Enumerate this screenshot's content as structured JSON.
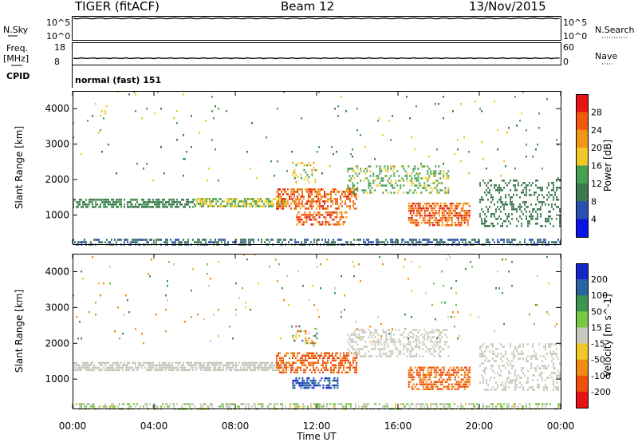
{
  "header": {
    "radar": "TIGER (fitACF)",
    "beam": "Beam 12",
    "date": "13/Nov/2015"
  },
  "top_panels": {
    "nsky_label": "N.Sky",
    "nsky_ticks": [
      "10^5",
      "10^0"
    ],
    "nsearch_label": "N.Search",
    "nsearch_ticks": [
      "10^5",
      "10^0"
    ],
    "freq_label_1": "Freq.",
    "freq_label_2": "[MHz]",
    "freq_ticks": [
      "18",
      "8"
    ],
    "nave_label": "Nave",
    "nave_ticks": [
      "60",
      "0"
    ],
    "cpid_label": "CPID",
    "cpid_value": "normal (fast) 151"
  },
  "x_axis": {
    "label": "Time UT",
    "ticks": [
      "00:00",
      "04:00",
      "08:00",
      "12:00",
      "16:00",
      "20:00",
      "00:00"
    ]
  },
  "chart_data": [
    {
      "type": "heatmap",
      "title": "",
      "xlabel": "Time UT",
      "ylabel": "Slant Range [km]",
      "x_range_hours": [
        0,
        24
      ],
      "ylim": [
        180,
        4500
      ],
      "y_ticks": [
        1000,
        2000,
        3000,
        4000
      ],
      "colorbar": {
        "label": "Power [dB]",
        "ticks": [
          "4",
          "8",
          "12",
          "16",
          "20",
          "24",
          "28"
        ],
        "levels": [
          0,
          4,
          8,
          12,
          16,
          20,
          24,
          28,
          32
        ],
        "colors": [
          "#0a14e6",
          "#2850b4",
          "#3c7850",
          "#46a050",
          "#f0c828",
          "#f09614",
          "#f05a0a",
          "#e61414"
        ]
      },
      "regions": [
        {
          "t": [
            0.0,
            24.0
          ],
          "r": [
            180,
            330
          ],
          "v": [
            4,
            12
          ],
          "density": 0.5
        },
        {
          "t": [
            0.0,
            6.0
          ],
          "r": [
            1230,
            1460
          ],
          "v": [
            8,
            14
          ],
          "density": 0.65
        },
        {
          "t": [
            6.0,
            10.5
          ],
          "r": [
            1250,
            1480
          ],
          "v": [
            12,
            20
          ],
          "density": 0.7
        },
        {
          "t": [
            10.0,
            14.0
          ],
          "r": [
            1150,
            1750
          ],
          "v": [
            20,
            30
          ],
          "density": 0.55
        },
        {
          "t": [
            11.0,
            13.5
          ],
          "r": [
            700,
            1100
          ],
          "v": [
            22,
            30
          ],
          "density": 0.5
        },
        {
          "t": [
            10.8,
            12.0
          ],
          "r": [
            1900,
            2500
          ],
          "v": [
            14,
            22
          ],
          "density": 0.25
        },
        {
          "t": [
            13.5,
            18.5
          ],
          "r": [
            1600,
            2400
          ],
          "v": [
            12,
            18
          ],
          "density": 0.35
        },
        {
          "t": [
            16.5,
            19.5
          ],
          "r": [
            700,
            1350
          ],
          "v": [
            20,
            30
          ],
          "density": 0.6
        },
        {
          "t": [
            20.0,
            24.0
          ],
          "r": [
            700,
            2000
          ],
          "v": [
            8,
            12
          ],
          "density": 0.3
        },
        {
          "t": [
            0.0,
            24.0
          ],
          "r": [
            2000,
            4500
          ],
          "v": [
            8,
            20
          ],
          "density": 0.015
        }
      ]
    },
    {
      "type": "heatmap",
      "title": "",
      "xlabel": "Time UT",
      "ylabel": "Slant Range [km]",
      "x_range_hours": [
        0,
        24
      ],
      "ylim": [
        180,
        4500
      ],
      "y_ticks": [
        1000,
        2000,
        3000,
        4000
      ],
      "colorbar": {
        "label": "Velocity [m s^-1]",
        "ticks": [
          "200",
          "100",
          "50",
          "15",
          "-15",
          "-50",
          "-100",
          "-200"
        ],
        "levels": [
          250,
          200,
          100,
          50,
          15,
          -15,
          -50,
          -100,
          -200,
          -250
        ],
        "colors": [
          "#1428c8",
          "#2864a0",
          "#3c9650",
          "#78c846",
          "#c8c8be",
          "#f0c828",
          "#f08c14",
          "#f0500a",
          "#e61414"
        ]
      },
      "regions": [
        {
          "t": [
            0.0,
            24.0
          ],
          "r": [
            180,
            330
          ],
          "v": [
            -20,
            40
          ],
          "density": 0.45
        },
        {
          "t": [
            0.0,
            10.5
          ],
          "r": [
            1230,
            1480
          ],
          "v": [
            -14,
            14
          ],
          "density": 0.75
        },
        {
          "t": [
            10.0,
            14.0
          ],
          "r": [
            1150,
            1750
          ],
          "v": [
            -200,
            -60
          ],
          "density": 0.55
        },
        {
          "t": [
            10.8,
            13.0
          ],
          "r": [
            750,
            1050
          ],
          "v": [
            100,
            250
          ],
          "density": 0.55
        },
        {
          "t": [
            10.8,
            12.0
          ],
          "r": [
            1900,
            2500
          ],
          "v": [
            -150,
            150
          ],
          "density": 0.25
        },
        {
          "t": [
            13.5,
            18.5
          ],
          "r": [
            1600,
            2400
          ],
          "v": [
            -14,
            14
          ],
          "density": 0.35
        },
        {
          "t": [
            16.5,
            19.5
          ],
          "r": [
            700,
            1350
          ],
          "v": [
            -200,
            -50
          ],
          "density": 0.6
        },
        {
          "t": [
            20.0,
            24.0
          ],
          "r": [
            700,
            2000
          ],
          "v": [
            -14,
            14
          ],
          "density": 0.3
        },
        {
          "t": [
            0.0,
            24.0
          ],
          "r": [
            2000,
            4500
          ],
          "v": [
            -100,
            100
          ],
          "density": 0.015
        }
      ]
    }
  ]
}
